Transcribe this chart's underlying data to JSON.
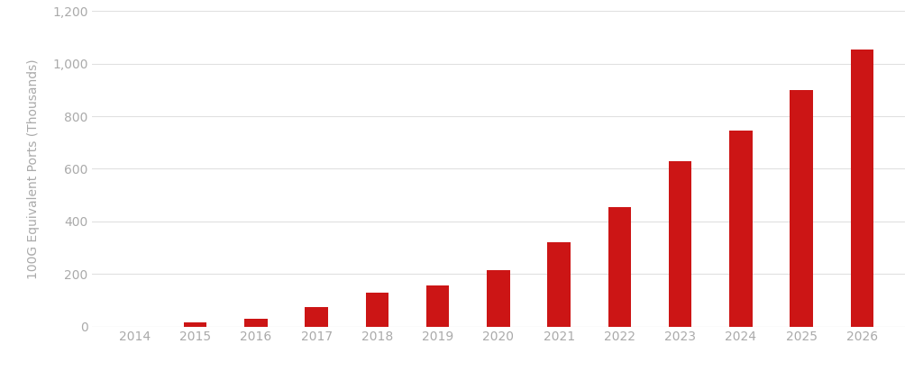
{
  "categories": [
    "2014",
    "2015",
    "2016",
    "2017",
    "2018",
    "2019",
    "2020",
    "2021",
    "2022",
    "2023",
    "2024",
    "2025",
    "2026"
  ],
  "values": [
    0,
    15,
    30,
    75,
    130,
    155,
    215,
    320,
    455,
    630,
    745,
    900,
    1055
  ],
  "bar_color": "#cc1515",
  "ylabel": "100G Equivalent Ports (Thousands)",
  "ylim": [
    0,
    1200
  ],
  "yticks": [
    0,
    200,
    400,
    600,
    800,
    1000,
    1200
  ],
  "ytick_labels": [
    "0",
    "200",
    "400",
    "600",
    "800",
    "1,000",
    "1,200"
  ],
  "background_color": "#ffffff",
  "grid_color": "#e0e0e0",
  "bar_width": 0.38,
  "label_color": "#aaaaaa",
  "tick_label_fontsize": 10
}
